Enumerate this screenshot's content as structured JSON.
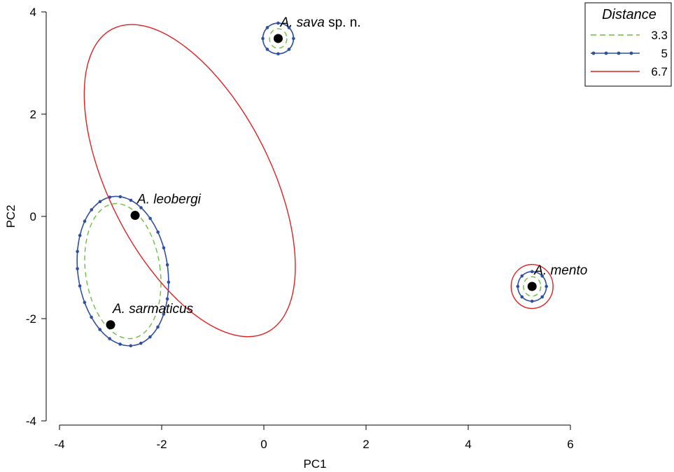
{
  "chart_data": {
    "type": "scatter",
    "xlabel": "PC1",
    "ylabel": "PC2",
    "xlim": [
      -4,
      6
    ],
    "ylim": [
      -4,
      4
    ],
    "xticks": [
      -4,
      -2,
      0,
      2,
      4,
      6
    ],
    "yticks": [
      -4,
      -2,
      0,
      2,
      4
    ],
    "grid": false,
    "legend": {
      "title": "Distance",
      "placement": "top-right",
      "entries": [
        {
          "label": "3.3",
          "style": "dashed",
          "color": "#6bbf3f"
        },
        {
          "label": "5",
          "style": "solid-markers",
          "color": "#2f4fa0"
        },
        {
          "label": "6.7",
          "style": "solid",
          "color": "#e02020"
        }
      ]
    },
    "points": [
      {
        "name": "A. sava",
        "suffix": " sp. n.",
        "x": 0.28,
        "y": 3.48
      },
      {
        "name": "A. leobergi",
        "suffix": "",
        "x": -2.52,
        "y": 0.02
      },
      {
        "name": "A. sarmaticus",
        "suffix": "",
        "x": -3.0,
        "y": -2.12
      },
      {
        "name": "A. mento",
        "suffix": "",
        "x": 5.25,
        "y": -1.37
      }
    ],
    "ellipses": [
      {
        "distance": "3.3",
        "cx": 0.28,
        "cy": 3.48,
        "rx": 0.17,
        "ry": 0.19,
        "angle": 0
      },
      {
        "distance": "5",
        "cx": 0.28,
        "cy": 3.48,
        "rx": 0.3,
        "ry": 0.3,
        "angle": 0
      },
      {
        "distance": "3.3",
        "cx": -2.76,
        "cy": -1.07,
        "rx": 0.73,
        "ry": 1.33,
        "angle": -8
      },
      {
        "distance": "5",
        "cx": -2.76,
        "cy": -1.07,
        "rx": 0.88,
        "ry": 1.47,
        "angle": -8
      },
      {
        "distance": "6.7",
        "cx": -1.45,
        "cy": 0.7,
        "rx": 1.58,
        "ry": 3.33,
        "angle": -27
      },
      {
        "distance": "3.3",
        "cx": 5.25,
        "cy": -1.37,
        "rx": 0.17,
        "ry": 0.19,
        "angle": 0
      },
      {
        "distance": "5",
        "cx": 5.25,
        "cy": -1.37,
        "rx": 0.28,
        "ry": 0.29,
        "angle": 0
      },
      {
        "distance": "6.7",
        "cx": 5.25,
        "cy": -1.37,
        "rx": 0.41,
        "ry": 0.43,
        "angle": 0
      }
    ]
  }
}
